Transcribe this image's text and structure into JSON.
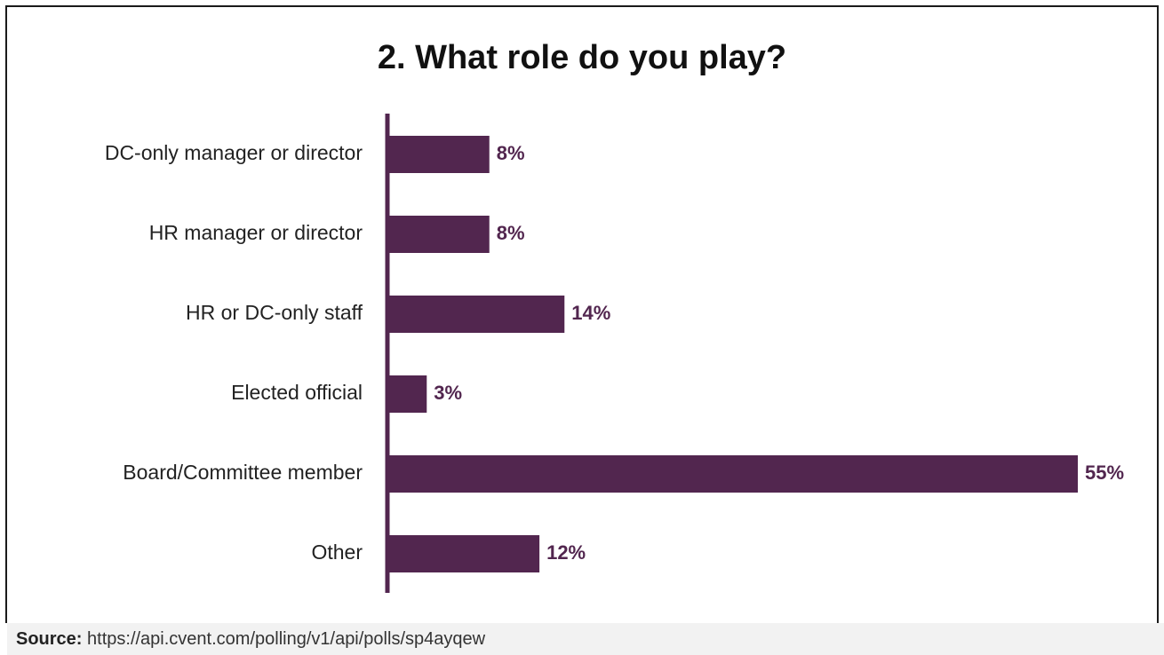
{
  "chart_data": {
    "type": "bar",
    "orientation": "horizontal",
    "title": "2. What role do you play?",
    "categories": [
      "DC-only manager or director",
      "HR manager or director",
      "HR or DC-only staff",
      "Elected official",
      "Board/Committee member",
      "Other"
    ],
    "values": [
      8,
      8,
      14,
      3,
      55,
      12
    ],
    "data_labels": [
      "8%",
      "8%",
      "14%",
      "3%",
      "55%",
      "12%"
    ],
    "xlim": [
      0,
      55
    ],
    "grid": false,
    "legend": "none"
  },
  "colors": {
    "bar": "#52264f",
    "axis": "#52264f",
    "value_label": "#52264f",
    "category_label": "#222222"
  },
  "source": {
    "label": "Source:",
    "url": "https://api.cvent.com/polling/v1/api/polls/sp4ayqew"
  }
}
